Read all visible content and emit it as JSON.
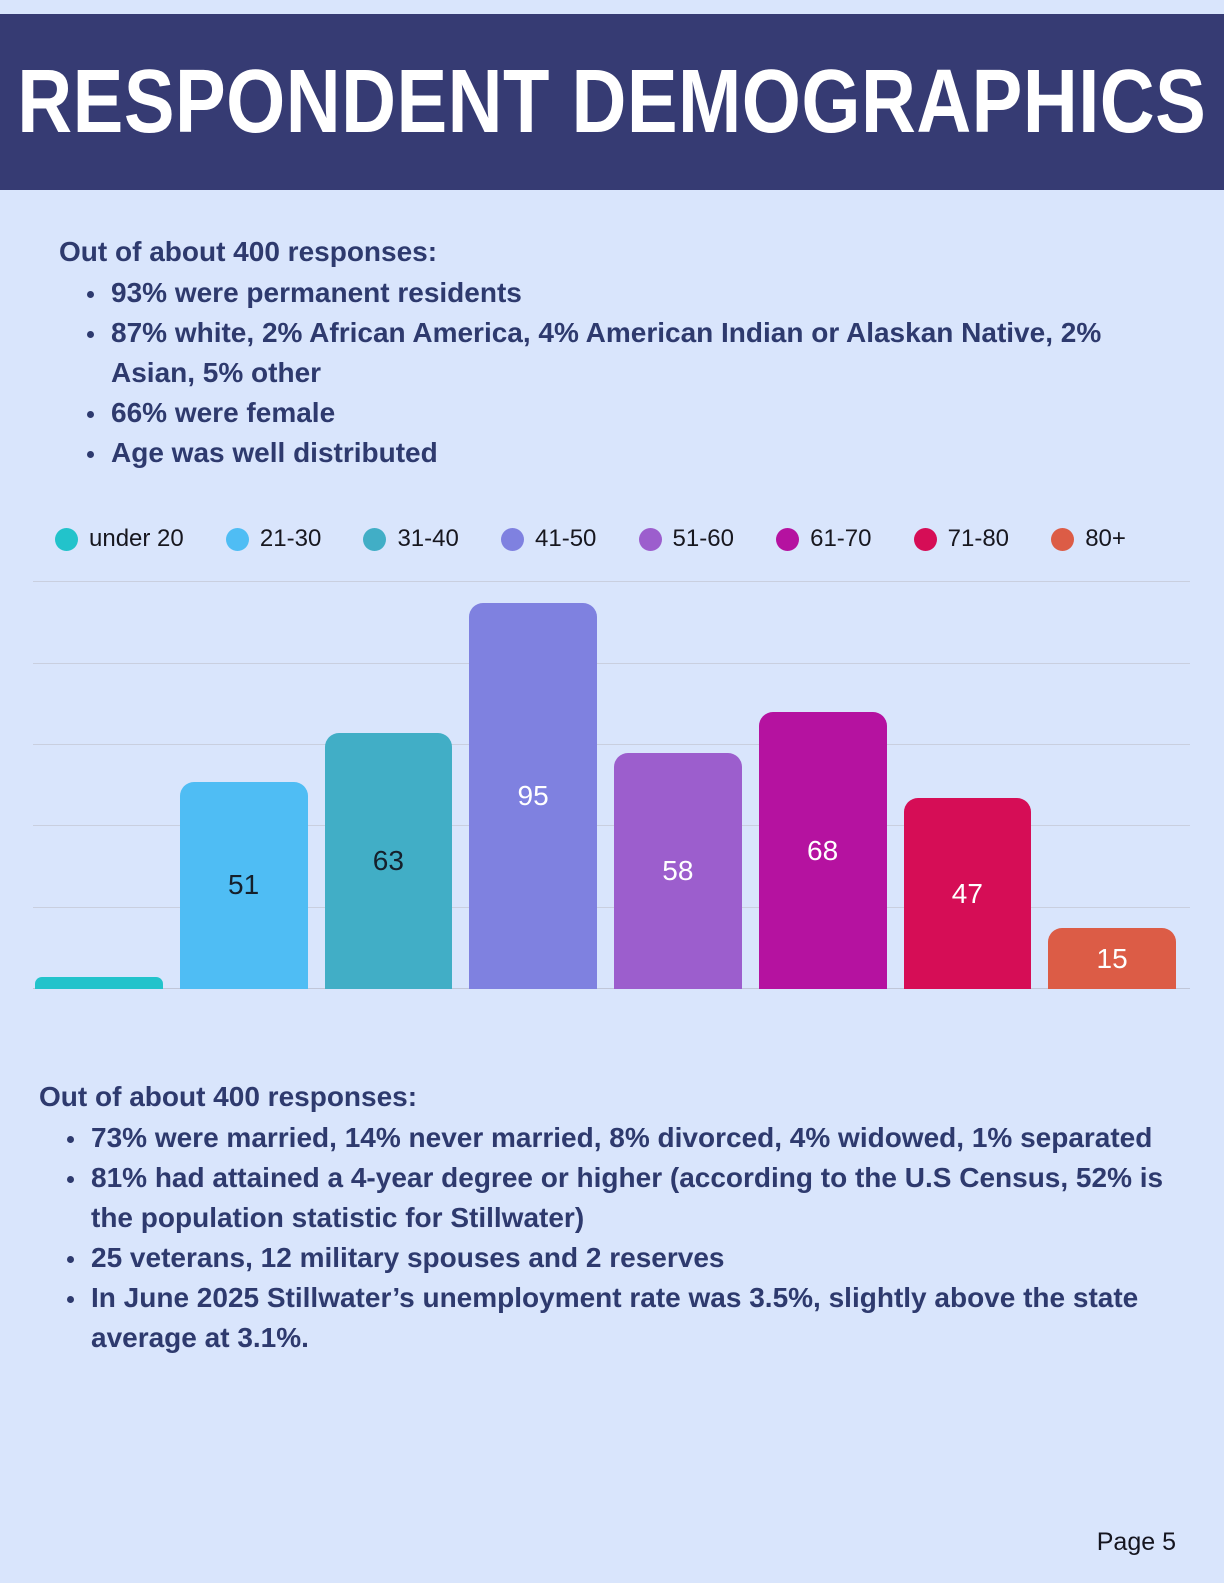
{
  "page": {
    "title": "RESPONDENT DEMOGRAPHICS",
    "page_number": "Page 5"
  },
  "top_section": {
    "heading": "Out of about 400 responses:",
    "bullets": [
      "93% were permanent residents",
      "87% white, 2% African America, 4% American Indian or Alaskan Native, 2% Asian, 5% other",
      "66% were female",
      "Age was well distributed"
    ]
  },
  "bottom_section": {
    "heading": "Out of about 400 responses:",
    "bullets": [
      "73% were married, 14% never married, 8% divorced, 4% widowed, 1% separated",
      "81% had attained a 4-year degree or higher (according to the U.S Census, 52% is the population statistic for Stillwater)",
      "25 veterans, 12 military spouses and 2 reserves",
      "In June 2025 Stillwater’s unemployment rate was 3.5%, slightly above the state average at 3.1%."
    ]
  },
  "chart_data": {
    "type": "bar",
    "title": "",
    "xlabel": "",
    "ylabel": "",
    "categories": [
      "under 20",
      "21-30",
      "31-40",
      "41-50",
      "51-60",
      "61-70",
      "71-80",
      "80+"
    ],
    "values": [
      3,
      51,
      63,
      95,
      58,
      68,
      47,
      15
    ],
    "bar_labels": [
      "",
      "51",
      "63",
      "95",
      "58",
      "68",
      "47",
      "15"
    ],
    "colors": [
      "#22c3cb",
      "#4fbdf4",
      "#41aec6",
      "#7f81e0",
      "#9c5ecd",
      "#b512a0",
      "#d60d56",
      "#dc5c46"
    ],
    "label_colors": [
      "#15202b",
      "#15202b",
      "#15202b",
      "#ffffff",
      "#ffffff",
      "#ffffff",
      "#ffffff",
      "#ffffff"
    ],
    "ylim": [
      0,
      100
    ],
    "gridline_values": [
      0,
      20,
      40,
      60,
      80,
      100
    ],
    "grid": true,
    "legend_position": "top"
  },
  "colors": {
    "background": "#d9e5fc",
    "header_background": "#363b73",
    "title_text": "#ffffff",
    "body_text": "#2e3a6e",
    "legend_text": "#17171f",
    "gridline": "#c9cfdf",
    "baseline": "#c0c6d8",
    "page_number_text": "#15151f"
  }
}
